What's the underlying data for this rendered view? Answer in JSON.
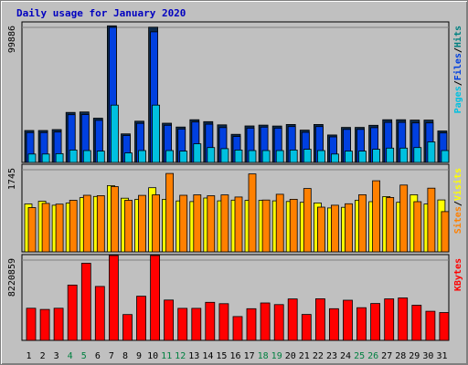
{
  "chart_data": {
    "type": "bar",
    "title": "Daily usage for January 2020",
    "categories": [
      "1",
      "2",
      "3",
      "4",
      "5",
      "6",
      "7",
      "8",
      "9",
      "10",
      "11",
      "12",
      "13",
      "14",
      "15",
      "16",
      "17",
      "18",
      "19",
      "20",
      "21",
      "22",
      "23",
      "24",
      "25",
      "26",
      "27",
      "28",
      "29",
      "30",
      "31"
    ],
    "weekend_days": [
      "4",
      "5",
      "11",
      "12",
      "18",
      "19",
      "25",
      "26"
    ],
    "panels": [
      {
        "id": "top",
        "ymax_label": "99886",
        "ymax": 99886,
        "axis_labels": [
          {
            "text": "Pages",
            "color": "#00c0e0"
          },
          {
            "text": "/",
            "color": "#000000"
          },
          {
            "text": "Files",
            "color": "#0040e0"
          },
          {
            "text": "/",
            "color": "#000000"
          },
          {
            "text": "Hits",
            "color": "#008080"
          }
        ],
        "series": [
          {
            "name": "Hits",
            "color": "#0d2a4a",
            "values": [
              23600,
              23600,
              24300,
              37000,
              37300,
              32700,
              101000,
              21100,
              30500,
              100000,
              29000,
              26200,
              31600,
              30200,
              27800,
              20800,
              27000,
              27600,
              26900,
              28100,
              23900,
              28100,
              20300,
              25900,
              25900,
              27500,
              31600,
              31600,
              31300,
              31300,
              23300
            ]
          },
          {
            "name": "Files",
            "color": "#0040e0",
            "values": [
              22100,
              22100,
              22500,
              35300,
              35400,
              31100,
              99886,
              19900,
              28900,
              96600,
              27500,
              24700,
              29900,
              28300,
              25800,
              19200,
              25400,
              26100,
              25400,
              26500,
              22300,
              26500,
              18900,
              24400,
              24400,
              25700,
              29600,
              29600,
              29200,
              29200,
              21800
            ]
          },
          {
            "name": "Pages",
            "color": "#00c0e0",
            "values": [
              6200,
              6200,
              6500,
              9200,
              8800,
              8400,
              42400,
              7000,
              8800,
              42400,
              8800,
              8400,
              13800,
              11000,
              10200,
              9200,
              8800,
              8800,
              8800,
              9200,
              9700,
              8800,
              6200,
              8400,
              8400,
              9700,
              10600,
              10600,
              11000,
              15200,
              8800
            ]
          }
        ]
      },
      {
        "id": "mid",
        "ymax_label": "1745",
        "ymax": 1745,
        "axis_labels": [
          {
            "text": "Sites",
            "color": "#ff8000"
          },
          {
            "text": "/",
            "color": "#000000"
          },
          {
            "text": "Visits",
            "color": "#ffff00"
          }
        ],
        "series": [
          {
            "name": "Visits",
            "color": "#ffff00",
            "values": [
              1018,
              1076,
              991,
              1038,
              1152,
              1176,
              1408,
              1141,
              1114,
              1364,
              1117,
              1081,
              1068,
              1144,
              1083,
              1100,
              1094,
              1093,
              1083,
              1070,
              1053,
              1040,
              933,
              946,
              1097,
              1066,
              1174,
              1052,
              1214,
              1016,
              1103
            ]
          },
          {
            "name": "Sites",
            "color": "#ff8000",
            "values": [
              940,
              1030,
              1014,
              1095,
              1202,
              1195,
              1386,
              1095,
              1200,
              1212,
              1666,
              1203,
              1212,
              1192,
              1209,
              1166,
              1656,
              1102,
              1223,
              1116,
              1346,
              951,
              990,
              1021,
              1214,
              1510,
              1155,
              1420,
              1066,
              1353,
              856
            ]
          }
        ]
      },
      {
        "id": "bot",
        "ymax_label": "8220859",
        "ymax": 8220859,
        "axis_labels": [
          {
            "text": "KBytes",
            "color": "#ff0000"
          }
        ],
        "series": [
          {
            "name": "KBytes",
            "color": "#ff0000",
            "values": [
              3290000,
              3170000,
              3290000,
              5660000,
              7890000,
              5520000,
              11000000,
              2640000,
              4520000,
              10400000,
              4130000,
              3280000,
              3280000,
              3900000,
              3760000,
              2440000,
              3240000,
              3830000,
              3660000,
              4240000,
              2650000,
              4260000,
              3240000,
              4110000,
              3340000,
              3770000,
              4250000,
              4340000,
              3600000,
              2980000,
              2850000
            ]
          }
        ]
      }
    ]
  }
}
